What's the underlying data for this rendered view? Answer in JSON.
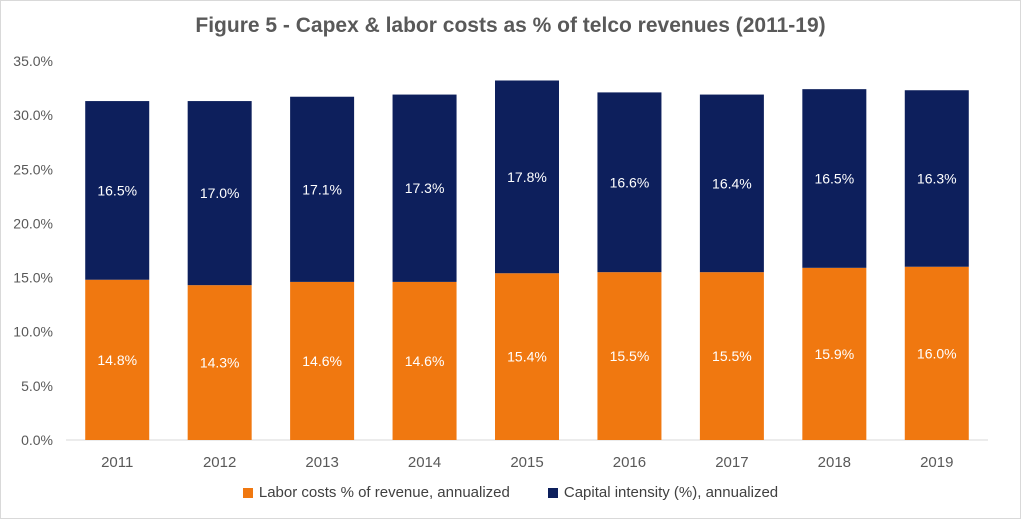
{
  "chart_data": {
    "type": "bar",
    "stacked": true,
    "title": "Figure 5 - Capex & labor costs as % of telco revenues (2011-19)",
    "categories": [
      "2011",
      "2012",
      "2013",
      "2014",
      "2015",
      "2016",
      "2017",
      "2018",
      "2019"
    ],
    "series": [
      {
        "name": "Labor costs % of revenue, annualized",
        "color": "#f07810",
        "values": [
          14.8,
          14.3,
          14.6,
          14.6,
          15.4,
          15.5,
          15.5,
          15.9,
          16.0
        ],
        "labels": [
          "14.8%",
          "14.3%",
          "14.6%",
          "14.6%",
          "15.4%",
          "15.5%",
          "15.5%",
          "15.9%",
          "16.0%"
        ]
      },
      {
        "name": "Capital intensity (%), annualized",
        "color": "#0d1f5c",
        "values": [
          16.5,
          17.0,
          17.1,
          17.3,
          17.8,
          16.6,
          16.4,
          16.5,
          16.3
        ],
        "labels": [
          "16.5%",
          "17.0%",
          "17.1%",
          "17.3%",
          "17.8%",
          "16.6%",
          "16.4%",
          "16.5%",
          "16.3%"
        ]
      }
    ],
    "ylim": [
      0,
      35
    ],
    "yticks": [
      "0.0%",
      "5.0%",
      "10.0%",
      "15.0%",
      "20.0%",
      "25.0%",
      "30.0%",
      "35.0%"
    ],
    "grid": false,
    "legend_position": "bottom"
  }
}
